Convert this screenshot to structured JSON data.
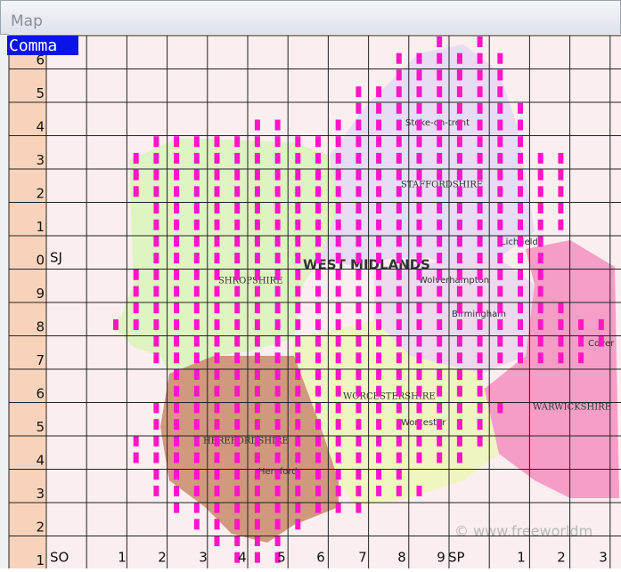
{
  "window": {
    "title": "Map"
  },
  "selection": "Comma",
  "row_labels": [
    "6",
    "5",
    "4",
    "3",
    "2",
    "1",
    "0",
    "9",
    "8",
    "7",
    "6",
    "5",
    "4",
    "3",
    "2",
    "1"
  ],
  "column_labels": [
    "1",
    "2",
    "3",
    "4",
    "5",
    "6",
    "7",
    "8",
    "9",
    "1",
    "2",
    "3"
  ],
  "grid_letters": {
    "north": "SJ",
    "south_west": "SO",
    "south_east": "SP"
  },
  "map_labels": {
    "region": "WEST MIDLANDS",
    "shropshire": "SHROPSHIRE",
    "staffordshire": "STAFFORDSHIRE",
    "herefordshire": "HEREFORDSHIRE",
    "worcestershire": "WORCESTERSHIRE",
    "warwickshire": "WARWICKSHIRE",
    "stoke": "Stoke-on-trent",
    "wolverhampton": "Wolverhampton",
    "birmingham": "Birmingham",
    "lichfield": "Lichfield",
    "worcester": "Worcester",
    "hereford": "Hereford",
    "coventry": "Cover"
  },
  "watermark": "© www.freeworldm"
}
